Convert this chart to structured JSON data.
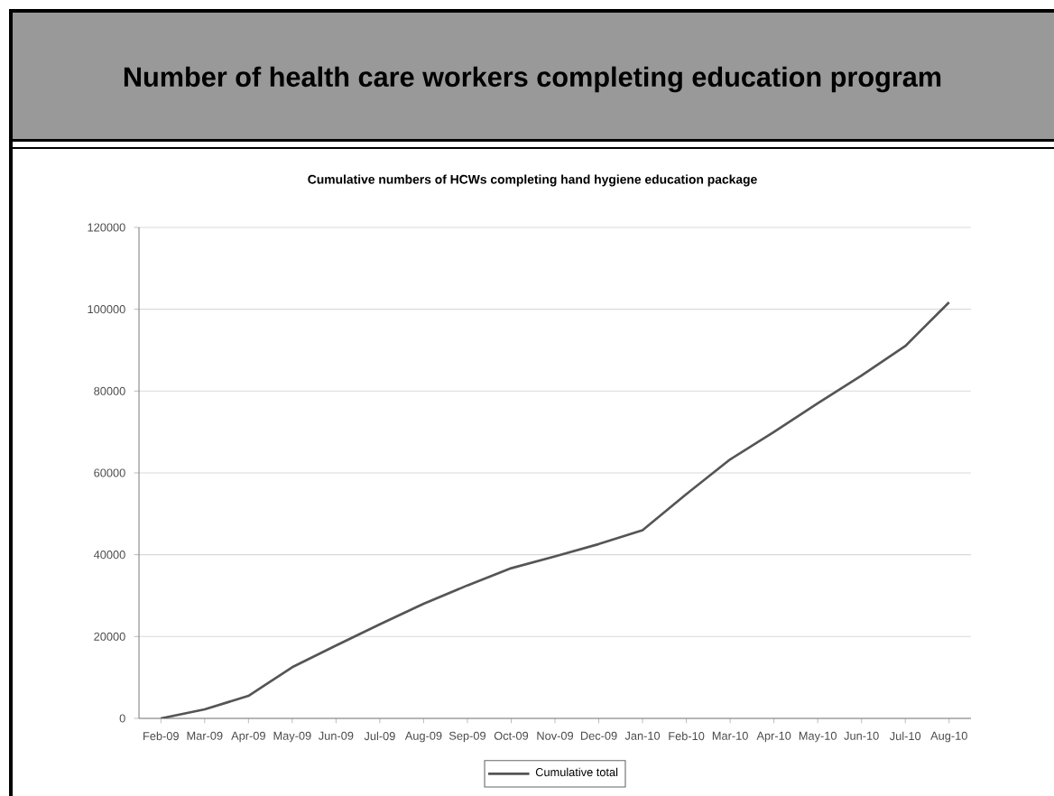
{
  "chart_data": {
    "type": "line",
    "title": "Number of health care workers completing education program",
    "subtitle": "Cumulative numbers of HCWs completing hand hygiene education package",
    "categories": [
      "Feb-09",
      "Mar-09",
      "Apr-09",
      "May-09",
      "Jun-09",
      "Jul-09",
      "Aug-09",
      "Sep-09",
      "Oct-09",
      "Nov-09",
      "Dec-09",
      "Jan-10",
      "Feb-10",
      "Mar-10",
      "Apr-10",
      "May-10",
      "Jun-10",
      "Jul-10",
      "Aug-10"
    ],
    "series": [
      {
        "name": "Cumulative total",
        "color": "#555555",
        "values": [
          0,
          2200,
          5500,
          12500,
          17800,
          23000,
          28000,
          32500,
          36700,
          39600,
          42600,
          46000,
          54800,
          63300,
          70000,
          77000,
          83800,
          91000,
          101700
        ]
      }
    ],
    "ylim": [
      0,
      120000
    ],
    "yticks": [
      0,
      20000,
      40000,
      60000,
      80000,
      100000,
      120000
    ],
    "grid": "y",
    "legend": "bottom",
    "marker": "none",
    "line_style": "solid"
  }
}
